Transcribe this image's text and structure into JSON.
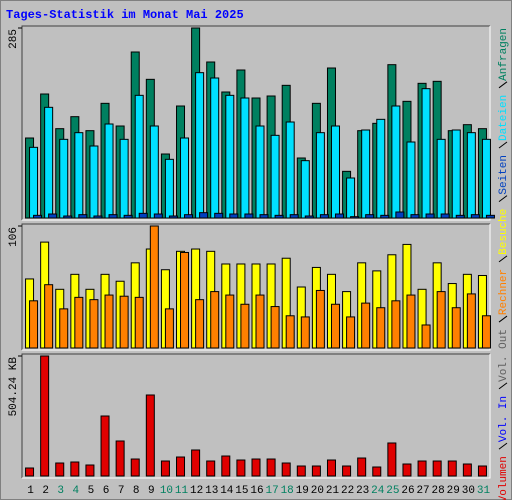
{
  "chart_data": [
    {
      "type": "bar",
      "title": "Tages-Statistik im Monat Mai 2025",
      "ylim": [
        0,
        285
      ],
      "yticks": [
        285
      ],
      "series": [
        {
          "name": "Anfragen",
          "color": "#008060",
          "values": [
            120,
            186,
            134,
            152,
            131,
            172,
            138,
            249,
            208,
            96,
            168,
            285,
            234,
            189,
            222,
            180,
            183,
            199,
            90,
            172,
            225,
            70,
            131,
            142,
            230,
            175,
            202,
            205,
            131,
            140,
            134
          ]
        },
        {
          "name": "Dateien",
          "color": "#00e0ff",
          "values": [
            106,
            166,
            118,
            128,
            108,
            141,
            118,
            184,
            138,
            88,
            120,
            218,
            210,
            184,
            180,
            138,
            124,
            144,
            86,
            128,
            138,
            60,
            132,
            148,
            168,
            114,
            194,
            118,
            132,
            128,
            118
          ]
        },
        {
          "name": "Seiten",
          "color": "#0040c0",
          "values": [
            4,
            6,
            3,
            5,
            3,
            5,
            4,
            7,
            6,
            3,
            5,
            8,
            7,
            6,
            6,
            5,
            4,
            5,
            3,
            5,
            6,
            2,
            5,
            4,
            9,
            5,
            6,
            6,
            4,
            5,
            4
          ]
        }
      ]
    },
    {
      "type": "bar",
      "ylim": [
        0,
        106
      ],
      "yticks": [
        106
      ],
      "series": [
        {
          "name": "Besuche",
          "color": "#ffff00",
          "values": [
            60,
            92,
            51,
            64,
            51,
            64,
            58,
            74,
            86,
            68,
            84,
            86,
            84,
            73,
            73,
            73,
            73,
            78,
            53,
            70,
            64,
            49,
            74,
            67,
            81,
            90,
            51,
            74,
            56,
            64,
            63
          ]
        },
        {
          "name": "Rechner",
          "color": "#ff8000",
          "values": [
            41,
            55,
            34,
            44,
            42,
            46,
            45,
            44,
            106,
            34,
            83,
            42,
            49,
            46,
            38,
            46,
            36,
            28,
            27,
            50,
            38,
            27,
            39,
            35,
            41,
            46,
            20,
            49,
            35,
            47,
            28
          ]
        }
      ]
    },
    {
      "type": "bar",
      "ylim": [
        0,
        504.24
      ],
      "yticks": [
        {
          "value": 504.24,
          "label": "504.24 KB"
        }
      ],
      "categories": [
        "1",
        "2",
        "3",
        "4",
        "5",
        "6",
        "7",
        "8",
        "9",
        "10",
        "11",
        "12",
        "13",
        "14",
        "15",
        "16",
        "17",
        "18",
        "19",
        "20",
        "21",
        "22",
        "23",
        "24",
        "25",
        "26",
        "27",
        "28",
        "29",
        "30",
        "31"
      ],
      "category_colors": [
        "#000000",
        "#000000",
        "#008060",
        "#008060",
        "#000000",
        "#000000",
        "#000000",
        "#000000",
        "#000000",
        "#008060",
        "#008060",
        "#000000",
        "#000000",
        "#000000",
        "#000000",
        "#000000",
        "#008060",
        "#008060",
        "#000000",
        "#000000",
        "#000000",
        "#000000",
        "#000000",
        "#008060",
        "#008060",
        "#000000",
        "#000000",
        "#000000",
        "#000000",
        "#000000",
        "#008060"
      ],
      "series": [
        {
          "name": "Vol. Out",
          "color": "#606060",
          "values": [
            null,
            null,
            null,
            null,
            null,
            null,
            null,
            null,
            null,
            null,
            null,
            null,
            null,
            null,
            null,
            null,
            null,
            null,
            null,
            null,
            null,
            null,
            null,
            null,
            null,
            null,
            null,
            null,
            null,
            null,
            null
          ]
        },
        {
          "name": "Vol. In",
          "color": "#0000ff",
          "values": [
            null,
            null,
            null,
            null,
            null,
            null,
            null,
            null,
            null,
            null,
            null,
            null,
            null,
            null,
            null,
            null,
            null,
            null,
            null,
            null,
            null,
            null,
            null,
            null,
            null,
            null,
            null,
            null,
            null,
            null,
            null
          ]
        },
        {
          "name": "Volumen",
          "color": "#e00000",
          "values": [
            33.6,
            504.24,
            54.6,
            58.8,
            46.2,
            252.1,
            147.1,
            71.4,
            340.4,
            63,
            79.8,
            109.3,
            63,
            84,
            67.2,
            71.4,
            71.4,
            54.6,
            42,
            42,
            67.2,
            42,
            75.6,
            37.8,
            138.7,
            50.4,
            63,
            63,
            63,
            50.4,
            42
          ]
        }
      ]
    }
  ]
}
